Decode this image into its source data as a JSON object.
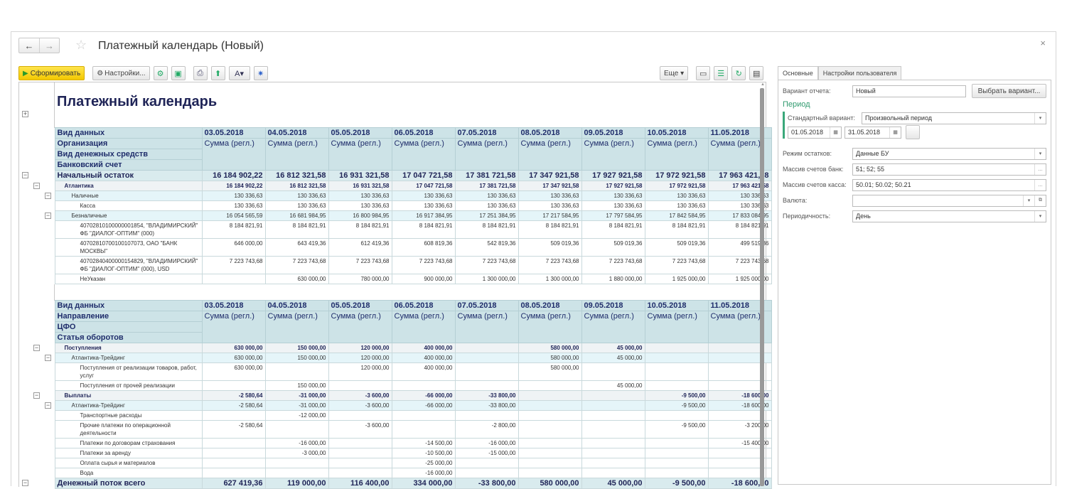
{
  "window": {
    "title": "Платежный календарь (Новый)",
    "close": "×",
    "back": "←",
    "forward": "→",
    "star": "☆"
  },
  "toolbar": {
    "generate": "Сформировать",
    "settings": "Настройки...",
    "more": "Еще"
  },
  "report": {
    "title": "Платежный календарь"
  },
  "dates": [
    "03.05.2018",
    "04.05.2018",
    "05.05.2018",
    "06.05.2018",
    "07.05.2018",
    "08.05.2018",
    "09.05.2018",
    "10.05.2018",
    "11.05.2018"
  ],
  "sum_label": "Сумма (регл.)",
  "table1": {
    "headers": [
      "Вид данных",
      "Организация",
      "Вид денежных средств",
      "Банковский счет"
    ],
    "rows": [
      {
        "label": "Начальный остаток",
        "style": "big",
        "level": 0,
        "tog": 0,
        "values": [
          "16 184 902,22",
          "16 812 321,58",
          "16 931 321,58",
          "17 047 721,58",
          "17 381 721,58",
          "17 347 921,58",
          "17 927 921,58",
          "17 972 921,58",
          "17 963 421,58"
        ]
      },
      {
        "label": "Атлантика",
        "style": "grp",
        "level": 1,
        "tog": 1,
        "values": [
          "16 184 902,22",
          "16 812 321,58",
          "16 931 321,58",
          "17 047 721,58",
          "17 381 721,58",
          "17 347 921,58",
          "17 927 921,58",
          "17 972 921,58",
          "17 963 421,58"
        ]
      },
      {
        "label": "Наличные",
        "style": "sub",
        "level": 2,
        "tog": 2,
        "values": [
          "130 336,63",
          "130 336,63",
          "130 336,63",
          "130 336,63",
          "130 336,63",
          "130 336,63",
          "130 336,63",
          "130 336,63",
          "130 336,63"
        ]
      },
      {
        "label": "Касса",
        "style": "",
        "level": 3,
        "values": [
          "130 336,63",
          "130 336,63",
          "130 336,63",
          "130 336,63",
          "130 336,63",
          "130 336,63",
          "130 336,63",
          "130 336,63",
          "130 336,63"
        ]
      },
      {
        "label": "Безналичные",
        "style": "sub",
        "level": 2,
        "tog": 2,
        "values": [
          "16 054 565,59",
          "16 681 984,95",
          "16 800 984,95",
          "16 917 384,95",
          "17 251 384,95",
          "17 217 584,95",
          "17 797 584,95",
          "17 842 584,95",
          "17 833 084,95"
        ]
      },
      {
        "label": "40702810100000001854, \"ВЛАДИМИРСКИЙ\" ФБ \"ДИАЛОГ-ОПТИМ\" (000)",
        "style": "",
        "level": 3,
        "values": [
          "8 184 821,91",
          "8 184 821,91",
          "8 184 821,91",
          "8 184 821,91",
          "8 184 821,91",
          "8 184 821,91",
          "8 184 821,91",
          "8 184 821,91",
          "8 184 821,91"
        ]
      },
      {
        "label": "40702810700100107073, ОАО \"БАНК МОСКВЫ\"",
        "style": "",
        "level": 3,
        "values": [
          "646 000,00",
          "643 419,36",
          "612 419,36",
          "608 819,36",
          "542 819,36",
          "509 019,36",
          "509 019,36",
          "509 019,36",
          "499 519,36"
        ]
      },
      {
        "label": "40702840400000154829, \"ВЛАДИМИРСКИЙ\" ФБ \"ДИАЛОГ-ОПТИМ\" (000), USD",
        "style": "",
        "level": 3,
        "values": [
          "7 223 743,68",
          "7 223 743,68",
          "7 223 743,68",
          "7 223 743,68",
          "7 223 743,68",
          "7 223 743,68",
          "7 223 743,68",
          "7 223 743,68",
          "7 223 743,68"
        ]
      },
      {
        "label": "НеУказан",
        "style": "",
        "level": 3,
        "values": [
          "",
          "630 000,00",
          "780 000,00",
          "900 000,00",
          "1 300 000,00",
          "1 300 000,00",
          "1 880 000,00",
          "1 925 000,00",
          "1 925 000,00"
        ]
      }
    ]
  },
  "table2": {
    "headers": [
      "Вид данных",
      "Направление",
      "ЦФО",
      "Статья оборотов"
    ],
    "rows": [
      {
        "label": "Поступления",
        "style": "grp",
        "level": 1,
        "tog": 1,
        "values": [
          "630 000,00",
          "150 000,00",
          "120 000,00",
          "400 000,00",
          "",
          "580 000,00",
          "45 000,00",
          "",
          ""
        ]
      },
      {
        "label": "Атлантика-Трейдинг",
        "style": "sub",
        "level": 2,
        "tog": 2,
        "values": [
          "630 000,00",
          "150 000,00",
          "120 000,00",
          "400 000,00",
          "",
          "580 000,00",
          "45 000,00",
          "",
          ""
        ]
      },
      {
        "label": "Поступления от реализации товаров, работ, услуг",
        "style": "",
        "level": 3,
        "values": [
          "630 000,00",
          "",
          "120 000,00",
          "400 000,00",
          "",
          "580 000,00",
          "",
          "",
          ""
        ]
      },
      {
        "label": "Поступления от прочей реализации",
        "style": "",
        "level": 3,
        "values": [
          "",
          "150 000,00",
          "",
          "",
          "",
          "",
          "45 000,00",
          "",
          ""
        ]
      },
      {
        "label": "Выплаты",
        "style": "grp",
        "level": 1,
        "tog": 1,
        "values": [
          "-2 580,64",
          "-31 000,00",
          "-3 600,00",
          "-66 000,00",
          "-33 800,00",
          "",
          "",
          "-9 500,00",
          "-18 600,00"
        ]
      },
      {
        "label": "Атлантика-Трейдинг",
        "style": "sub",
        "level": 2,
        "tog": 2,
        "values": [
          "-2 580,64",
          "-31 000,00",
          "-3 600,00",
          "-66 000,00",
          "-33 800,00",
          "",
          "",
          "-9 500,00",
          "-18 600,00"
        ]
      },
      {
        "label": "Транспортные расходы",
        "style": "",
        "level": 3,
        "values": [
          "",
          "-12 000,00",
          "",
          "",
          "",
          "",
          "",
          "",
          ""
        ]
      },
      {
        "label": "Прочие платежи по операционной деятельности",
        "style": "",
        "level": 3,
        "values": [
          "-2 580,64",
          "",
          "-3 600,00",
          "",
          "-2 800,00",
          "",
          "",
          "-9 500,00",
          "-3 200,00"
        ]
      },
      {
        "label": "Платежи по договорам страхования",
        "style": "",
        "level": 3,
        "values": [
          "",
          "-16 000,00",
          "",
          "-14 500,00",
          "-16 000,00",
          "",
          "",
          "",
          "-15 400,00"
        ]
      },
      {
        "label": "Платежи за аренду",
        "style": "",
        "level": 3,
        "values": [
          "",
          "-3 000,00",
          "",
          "-10 500,00",
          "-15 000,00",
          "",
          "",
          "",
          ""
        ]
      },
      {
        "label": "Оплата сырья и материалов",
        "style": "",
        "level": 3,
        "values": [
          "",
          "",
          "",
          "-25 000,00",
          "",
          "",
          "",
          "",
          ""
        ]
      },
      {
        "label": "Вода",
        "style": "",
        "level": 3,
        "values": [
          "",
          "",
          "",
          "-16 000,00",
          "",
          "",
          "",
          "",
          ""
        ]
      },
      {
        "label": "Денежный поток всего",
        "style": "big",
        "level": 0,
        "tog": 0,
        "values": [
          "627 419,36",
          "119 000,00",
          "116 400,00",
          "334 000,00",
          "-33 800,00",
          "580 000,00",
          "45 000,00",
          "-9 500,00",
          "-18 600,00"
        ]
      }
    ]
  },
  "panel": {
    "tabs": [
      "Основные",
      "Настройки пользователя"
    ],
    "variant_label": "Вариант отчета:",
    "variant_value": "Новый",
    "choose_variant": "Выбрать вариант...",
    "period_title": "Период",
    "std_label": "Стандартный вариант:",
    "std_value": "Произвольный период",
    "date_from": "01.05.2018",
    "date_to": "31.05.2018",
    "balance_label": "Режим остатков:",
    "balance_value": "Данные БУ",
    "bank_label": "Массив счетов банк:",
    "bank_value": "51; 52; 55",
    "cash_label": "Массив счетов касса:",
    "cash_value": "50.01; 50.02; 50.21",
    "currency_label": "Валюта:",
    "currency_value": "",
    "period_label": "Периодичность:",
    "period_value": "День"
  }
}
